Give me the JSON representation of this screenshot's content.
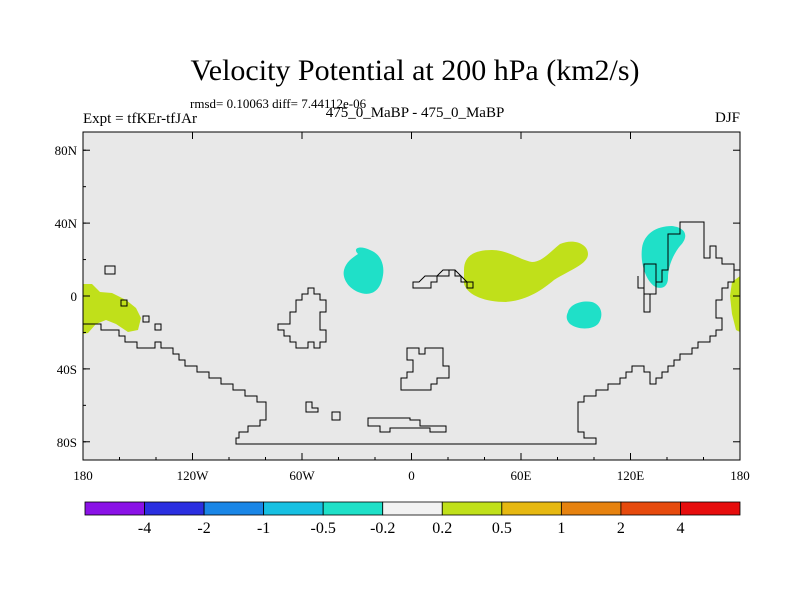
{
  "chart_data": {
    "type": "contour-map",
    "title": "Velocity Potential at 200 hPa (km2/s)",
    "stats": "rmsd= 0.10063  diff= 7.44112e-06",
    "left_label": "Expt = tfKEr-tfJAr",
    "center_label": "475_0_MaBP - 475_0_MaBP",
    "right_label": "DJF",
    "projection": "cylindrical equidistant",
    "lon_range": [
      -180,
      180
    ],
    "lat_range": [
      -90,
      90
    ],
    "lon_ticks": [
      "180",
      "120W",
      "60W",
      "0",
      "60E",
      "120E",
      "180"
    ],
    "lat_ticks": [
      "80N",
      "40N",
      "0",
      "40S",
      "80S"
    ],
    "colorbar": {
      "labels": [
        "-4",
        "-2",
        "-1",
        "-0.5",
        "-0.2",
        "0.2",
        "0.5",
        "1",
        "2",
        "4"
      ],
      "colors": [
        "#8a12e6",
        "#2b2fe0",
        "#1a86e6",
        "#17c0e2",
        "#1fe0c8",
        "#f2f2f2",
        "#c0e01a",
        "#e6b811",
        "#e6820f",
        "#e64a0d",
        "#e60d0d"
      ]
    },
    "anomaly_regions": [
      {
        "category": "0.2 to 0.5",
        "center_lon": -170,
        "center_lat": -7
      },
      {
        "category": "-0.5 to -0.2",
        "center_lon": -34,
        "center_lat": 13
      },
      {
        "category": "0.2 to 0.5",
        "center_lon": 63,
        "center_lat": 11
      },
      {
        "category": "-0.5 to -0.2",
        "center_lon": 103,
        "center_lat": -11
      },
      {
        "category": "-0.5 to -0.2",
        "center_lon": 141,
        "center_lat": 20
      },
      {
        "category": "0.2 to 0.5",
        "center_lon": 178,
        "center_lat": -5
      }
    ],
    "background_color": "#e8e8e8"
  }
}
